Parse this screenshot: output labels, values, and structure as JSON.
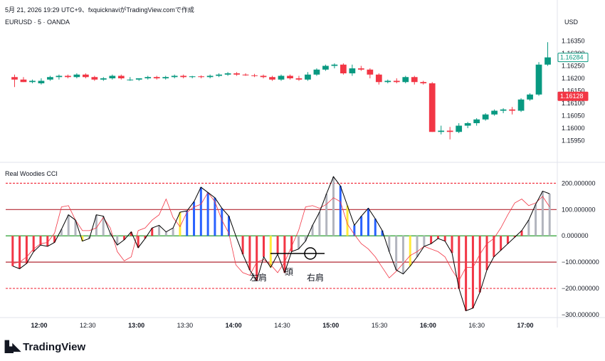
{
  "header": {
    "title": "5月 21, 2026 19:29 UTC+9、fxquicknaviがTradingView.comで作成"
  },
  "symbol_label": "EURUSD · 5 · OANDA",
  "indicator_label": "Real Woodies CCI",
  "currency_label": "USD",
  "brand": "TradingView",
  "annotations": {
    "left_shoulder": "左肩",
    "head": "頭",
    "right_shoulder": "右肩"
  },
  "colors": {
    "up": "#089981",
    "down": "#f23645",
    "cci_line": "#000000",
    "tcci_line": "#f23645",
    "band_200": "#f23645",
    "band_100": "#b22833",
    "zero_line": "#4caf50"
  },
  "chart_data": [
    {
      "type": "candlestick",
      "title": "EURUSD · 5 · OANDA",
      "ylim": [
        1.159,
        1.164
      ],
      "y_ticks": [
        "1.16350",
        "1.16300",
        "1.16250",
        "1.16200",
        "1.16150",
        "1.16100",
        "1.16050",
        "1.16000",
        "1.15950"
      ],
      "price_badges": [
        {
          "value": "1.16284",
          "color": "#089981",
          "y": 1.16284
        },
        {
          "value": "1.16128",
          "color": "#f23645",
          "y": 1.16128
        }
      ],
      "candles": [
        [
          1.16205,
          1.16215,
          1.16165,
          1.16195
        ],
        [
          1.16195,
          1.16205,
          1.16185,
          1.16185
        ],
        [
          1.16185,
          1.16195,
          1.1618,
          1.1619
        ],
        [
          1.1618,
          1.162,
          1.16175,
          1.1619
        ],
        [
          1.16195,
          1.1621,
          1.1619,
          1.16205
        ],
        [
          1.16205,
          1.16215,
          1.16195,
          1.1621
        ],
        [
          1.1621,
          1.16215,
          1.162,
          1.16205
        ],
        [
          1.16205,
          1.1622,
          1.162,
          1.16215
        ],
        [
          1.16215,
          1.1622,
          1.162,
          1.16205
        ],
        [
          1.16205,
          1.1621,
          1.1619,
          1.16195
        ],
        [
          1.16195,
          1.16205,
          1.1619,
          1.162
        ],
        [
          1.162,
          1.16215,
          1.16195,
          1.1621
        ],
        [
          1.1621,
          1.16215,
          1.16195,
          1.162
        ],
        [
          1.16195,
          1.16205,
          1.1619,
          1.16195
        ],
        [
          1.16195,
          1.162,
          1.1619,
          1.162
        ],
        [
          1.162,
          1.1621,
          1.16195,
          1.16205
        ],
        [
          1.16205,
          1.1621,
          1.16195,
          1.162
        ],
        [
          1.162,
          1.1621,
          1.16195,
          1.16205
        ],
        [
          1.16205,
          1.16215,
          1.162,
          1.1621
        ],
        [
          1.1621,
          1.16215,
          1.162,
          1.16205
        ],
        [
          1.16205,
          1.1621,
          1.162,
          1.16208
        ],
        [
          1.16208,
          1.16212,
          1.162,
          1.16205
        ],
        [
          1.16205,
          1.16215,
          1.162,
          1.1621
        ],
        [
          1.1621,
          1.1622,
          1.16205,
          1.16215
        ],
        [
          1.16215,
          1.16225,
          1.1621,
          1.1622
        ],
        [
          1.1622,
          1.16225,
          1.1621,
          1.16215
        ],
        [
          1.16215,
          1.1622,
          1.1621,
          1.16212
        ],
        [
          1.16212,
          1.16218,
          1.16205,
          1.1621
        ],
        [
          1.1621,
          1.16215,
          1.162,
          1.16205
        ],
        [
          1.16205,
          1.1621,
          1.1619,
          1.16195
        ],
        [
          1.16195,
          1.16215,
          1.1619,
          1.1621
        ],
        [
          1.1621,
          1.16215,
          1.16195,
          1.162
        ],
        [
          1.162,
          1.1621,
          1.1619,
          1.16195
        ],
        [
          1.16195,
          1.16225,
          1.1619,
          1.16215
        ],
        [
          1.16215,
          1.1624,
          1.1621,
          1.16235
        ],
        [
          1.16235,
          1.16255,
          1.1623,
          1.1625
        ],
        [
          1.1625,
          1.1626,
          1.1624,
          1.16255
        ],
        [
          1.16255,
          1.1626,
          1.16215,
          1.1622
        ],
        [
          1.1622,
          1.16255,
          1.1621,
          1.1624
        ],
        [
          1.1624,
          1.1625,
          1.1623,
          1.16235
        ],
        [
          1.16235,
          1.1624,
          1.162,
          1.16215
        ],
        [
          1.16215,
          1.1622,
          1.16175,
          1.16185
        ],
        [
          1.16185,
          1.16195,
          1.1618,
          1.1619
        ],
        [
          1.1619,
          1.162,
          1.1618,
          1.16185
        ],
        [
          1.16185,
          1.1621,
          1.1618,
          1.16205
        ],
        [
          1.16205,
          1.1621,
          1.16175,
          1.16185
        ],
        [
          1.16185,
          1.1619,
          1.16175,
          1.1618
        ],
        [
          1.1618,
          1.16185,
          1.15985,
          1.15985
        ],
        [
          1.15985,
          1.1601,
          1.15975,
          1.1599
        ],
        [
          1.1599,
          1.16005,
          1.15955,
          1.15985
        ],
        [
          1.15985,
          1.1602,
          1.1598,
          1.1601
        ],
        [
          1.1601,
          1.16025,
          1.16,
          1.1602
        ],
        [
          1.1602,
          1.1604,
          1.1601,
          1.16035
        ],
        [
          1.16035,
          1.1606,
          1.1603,
          1.16055
        ],
        [
          1.16055,
          1.16075,
          1.1605,
          1.1607
        ],
        [
          1.1607,
          1.1608,
          1.1606,
          1.16075
        ],
        [
          1.16075,
          1.16085,
          1.16055,
          1.1607
        ],
        [
          1.1607,
          1.1612,
          1.16065,
          1.16115
        ],
        [
          1.16115,
          1.1614,
          1.1611,
          1.16135
        ],
        [
          1.16135,
          1.16265,
          1.1613,
          1.16255
        ],
        [
          1.16255,
          1.16345,
          1.1625,
          1.16284
        ]
      ]
    },
    {
      "type": "bar+line",
      "title": "Real Woodies CCI",
      "ylim": [
        -300,
        220
      ],
      "y_ticks": [
        "200.000000",
        "100.000000",
        "0.000000",
        "−100.000000",
        "−200.000000",
        "−300.000000"
      ],
      "x_ticks": [
        "12:00",
        "12:30",
        "13:00",
        "13:30",
        "14:00",
        "14:30",
        "15:00",
        "15:30",
        "16:00",
        "16:30",
        "17:00"
      ],
      "x_ticks_bold": [
        "12:00",
        "13:00",
        "14:00",
        "15:00",
        "16:00",
        "17:00"
      ],
      "cci": [
        -115,
        -125,
        -105,
        -60,
        -35,
        -40,
        -25,
        25,
        80,
        60,
        -20,
        -10,
        80,
        75,
        10,
        -35,
        -15,
        15,
        -45,
        -10,
        30,
        40,
        15,
        30,
        90,
        95,
        130,
        185,
        165,
        145,
        105,
        75,
        0,
        -70,
        -130,
        -170,
        -80,
        -120,
        -70,
        -140,
        -60,
        -50,
        -20,
        40,
        90,
        160,
        225,
        190,
        115,
        40,
        75,
        105,
        65,
        20,
        -60,
        -130,
        -145,
        -115,
        -80,
        -40,
        -30,
        -10,
        -20,
        -65,
        -200,
        -285,
        -275,
        -215,
        -130,
        -80,
        -55,
        -30,
        -5,
        20,
        60,
        120,
        170,
        160
      ],
      "tcci": [
        -105,
        -100,
        -80,
        -50,
        -30,
        -25,
        10,
        110,
        115,
        60,
        20,
        20,
        30,
        70,
        30,
        -60,
        -95,
        -80,
        20,
        30,
        60,
        80,
        140,
        70,
        35,
        90,
        110,
        120,
        165,
        130,
        60,
        10,
        -110,
        -140,
        -150,
        -100,
        -90,
        -110,
        -140,
        -100,
        -40,
        20,
        110,
        115,
        105,
        120,
        145,
        130,
        45,
        5,
        -30,
        -50,
        -80,
        -120,
        -160,
        -135,
        -105,
        -75,
        -60,
        -40,
        -50,
        -60,
        -80,
        -130,
        -170,
        -120,
        -120,
        -70,
        -30,
        -10,
        30,
        80,
        125,
        140,
        115,
        125,
        150,
        110
      ],
      "bar_colors": [
        "r",
        "r",
        "r",
        "r",
        "r",
        "r",
        "r",
        "g",
        "g",
        "g",
        "y",
        "g",
        "g",
        "g",
        "g",
        "g",
        "r",
        "r",
        "r",
        "r",
        "r",
        "g",
        "g",
        "g",
        "y",
        "b",
        "b",
        "b",
        "b",
        "b",
        "b",
        "b",
        "g",
        "r",
        "r",
        "r",
        "r",
        "y",
        "r",
        "r",
        "r",
        "g",
        "g",
        "g",
        "g",
        "g",
        "g",
        "b",
        "y",
        "b",
        "b",
        "b",
        "b",
        "b",
        "g",
        "g",
        "g",
        "y",
        "g",
        "g",
        "r",
        "r",
        "r",
        "r",
        "r",
        "r",
        "r",
        "r",
        "r",
        "r",
        "r",
        "r",
        "r",
        "r",
        "g",
        "g",
        "g",
        "g"
      ],
      "bar_color_map": {
        "r": "#f23645",
        "g": "#b2b5be",
        "b": "#2962ff",
        "y": "#ffeb3b"
      },
      "levels": [
        200,
        100,
        0,
        -100,
        -200
      ]
    }
  ]
}
